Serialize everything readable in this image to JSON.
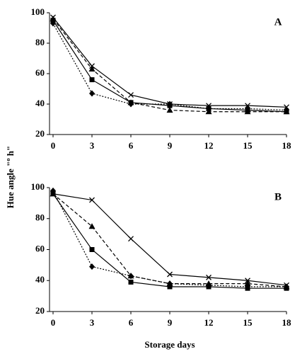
{
  "y_label": "Hue angle \"º h\"",
  "x_label": "Storage days",
  "chart_data": [
    {
      "type": "line",
      "title": "A",
      "x": [
        0,
        3,
        6,
        9,
        12,
        15,
        18
      ],
      "xlim": [
        0,
        18
      ],
      "xticks": [
        0,
        3,
        6,
        9,
        12,
        15,
        18
      ],
      "ylim": [
        20,
        100
      ],
      "yticks": [
        20,
        40,
        60,
        80,
        100
      ],
      "series": [
        {
          "color": "#000000",
          "marker": "x",
          "dash": "solid",
          "values": [
            97,
            65,
            46,
            40,
            39,
            39,
            38
          ]
        },
        {
          "color": "#000000",
          "marker": "triangle",
          "dash": "dashed",
          "values": [
            96,
            63,
            41,
            36,
            35,
            35,
            35
          ]
        },
        {
          "color": "#000000",
          "marker": "diamond",
          "dash": "dotted",
          "values": [
            93,
            47,
            40,
            40,
            37,
            37,
            36
          ]
        },
        {
          "color": "#000000",
          "marker": "square",
          "dash": "solid",
          "values": [
            95,
            56,
            41,
            39,
            37,
            36,
            35
          ]
        }
      ]
    },
    {
      "type": "line",
      "title": "B",
      "x": [
        0,
        3,
        6,
        9,
        12,
        15,
        18
      ],
      "xlim": [
        0,
        18
      ],
      "xticks": [
        0,
        3,
        6,
        9,
        12,
        15,
        18
      ],
      "ylim": [
        20,
        100
      ],
      "yticks": [
        20,
        40,
        60,
        80,
        100
      ],
      "series": [
        {
          "color": "#000000",
          "marker": "x",
          "dash": "solid",
          "values": [
            96,
            92,
            67,
            44,
            42,
            40,
            37
          ]
        },
        {
          "color": "#000000",
          "marker": "triangle",
          "dash": "dashed",
          "values": [
            96,
            75,
            43,
            38,
            38,
            38,
            36
          ]
        },
        {
          "color": "#000000",
          "marker": "diamond",
          "dash": "dotted",
          "values": [
            98,
            49,
            43,
            38,
            37,
            36,
            36
          ]
        },
        {
          "color": "#000000",
          "marker": "square",
          "dash": "solid",
          "values": [
            96,
            60,
            39,
            36,
            36,
            35,
            35
          ]
        }
      ]
    }
  ]
}
